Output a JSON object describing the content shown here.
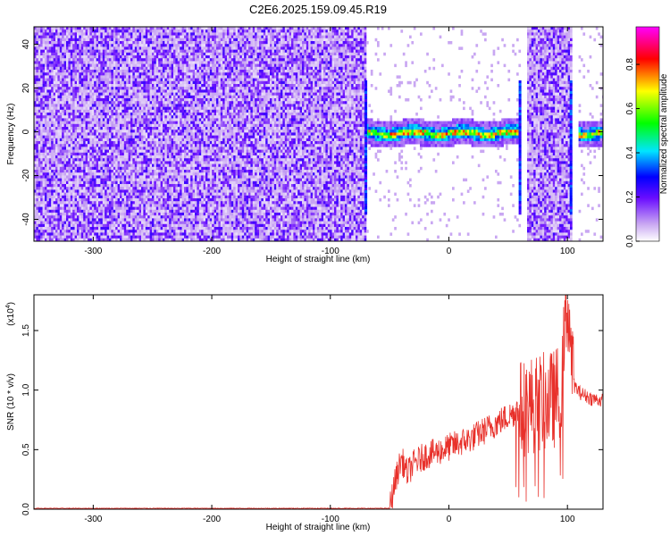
{
  "title": "C2E6.2025.159.09.45.R19",
  "chart_data": [
    {
      "type": "heatmap",
      "xlabel": "Height of straight line (km)",
      "ylabel": "Frequency (Hz)",
      "xlim": [
        -350,
        130
      ],
      "ylim": [
        -50,
        48
      ],
      "xticks": [
        -300,
        -200,
        -100,
        0,
        100
      ],
      "yticks": [
        -40,
        -20,
        0,
        20,
        40
      ],
      "xtick_labels": [
        "-300",
        "-200",
        "-100",
        "0",
        "100"
      ],
      "ytick_labels": [
        "-40",
        "-20",
        "0",
        "20",
        "40"
      ],
      "colorbar": {
        "label": "Normalized spectral amplitude",
        "range": [
          0,
          0.97
        ],
        "ticks": [
          0.0,
          0.2,
          0.4,
          0.6,
          0.8
        ],
        "tick_labels": [
          "0.0",
          "0.2",
          "0.4",
          "0.6",
          "0.8"
        ],
        "colormap": [
          "#ffffff",
          "#8a2be2",
          "#0000ff",
          "#00ffff",
          "#00ff00",
          "#ffff00",
          "#ff0000",
          "#ff00ff"
        ]
      },
      "regions": [
        {
          "x_range": [
            -350,
            -70
          ],
          "kind": "noise",
          "level": 0.1
        },
        {
          "x_range": [
            -70,
            60
          ],
          "kind": "tone",
          "center_hz": 0,
          "level": 0.85
        },
        {
          "x_range": [
            65,
            103
          ],
          "kind": "noise",
          "level": 0.1
        },
        {
          "x_range": [
            108,
            130
          ],
          "kind": "tone",
          "center_hz": 0,
          "level": 0.8
        }
      ]
    },
    {
      "type": "line",
      "xlabel": "Height of straight line (km)",
      "ylabel": "SNR (10 * v/v)",
      "y_multiplier_label": "(x10",
      "y_multiplier_exp": "4",
      "y_multiplier_close": ")",
      "xlim": [
        -350,
        130
      ],
      "ylim": [
        0,
        1.8
      ],
      "xticks": [
        -300,
        -200,
        -100,
        0,
        100
      ],
      "yticks": [
        0.0,
        0.5,
        1.0,
        1.5
      ],
      "xtick_labels": [
        "-300",
        "-200",
        "-100",
        "0",
        "100"
      ],
      "ytick_labels": [
        "0.0",
        "0.5",
        "1.0",
        "1.5"
      ],
      "color": "#e8302a",
      "series": [
        {
          "x": [
            -350,
            -100,
            -50,
            -45,
            -40,
            -35,
            -30,
            -20,
            -10,
            0,
            10,
            20,
            30,
            40,
            50,
            60,
            70,
            80,
            90,
            95,
            100,
            105,
            110,
            120,
            130
          ],
          "y": [
            0.0,
            0.0,
            0.01,
            0.25,
            0.42,
            0.3,
            0.38,
            0.45,
            0.48,
            0.52,
            0.56,
            0.6,
            0.66,
            0.72,
            0.78,
            0.84,
            0.88,
            0.9,
            0.93,
            1.05,
            1.78,
            1.05,
            0.98,
            0.93,
            0.91
          ]
        }
      ]
    }
  ]
}
